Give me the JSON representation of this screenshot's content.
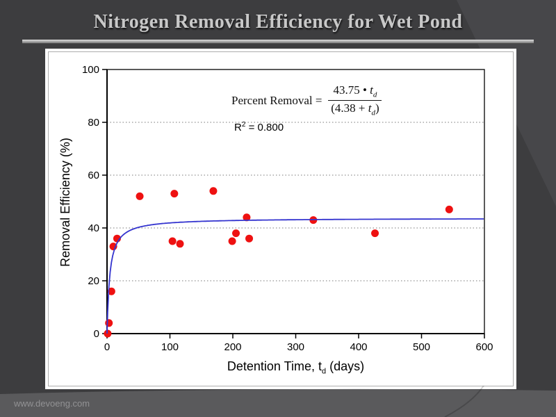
{
  "slide": {
    "title": "Nitrogen Removal Efficiency for Wet Pond",
    "footer": "www.devoeng.com",
    "colors": {
      "background": "#3d3d3f",
      "corner_accent": "#47474a",
      "bottom_band": "#5a5a5c",
      "title_text": "#c8c8c8"
    }
  },
  "chart_data": {
    "type": "scatter",
    "title": "Nitrogen Removal Efficiency for Wet Pond",
    "xlabel": {
      "prefix": "Detention Time, t",
      "sub": "d",
      "suffix": " (days)"
    },
    "ylabel": "Removal Efficiency (%)",
    "xlim": [
      0,
      600
    ],
    "ylim": [
      0,
      100
    ],
    "xticks": [
      "0",
      "100",
      "200",
      "300",
      "400",
      "500",
      "600"
    ],
    "yticks": [
      "0",
      "20",
      "40",
      "60",
      "80",
      "100"
    ],
    "grid_y": [
      20,
      40,
      60,
      80
    ],
    "grid_style": "horizontal dotted",
    "legend": "none",
    "points": [
      [
        1,
        0
      ],
      [
        3,
        4
      ],
      [
        7,
        16
      ],
      [
        10,
        33
      ],
      [
        16,
        36
      ],
      [
        52,
        52
      ],
      [
        104,
        35
      ],
      [
        107,
        53
      ],
      [
        116,
        34
      ],
      [
        169,
        54
      ],
      [
        199,
        35
      ],
      [
        205,
        38
      ],
      [
        222,
        44
      ],
      [
        226,
        36
      ],
      [
        328,
        43
      ],
      [
        426,
        38
      ],
      [
        544,
        47
      ]
    ],
    "fit_curve": {
      "equation": "PercentRemoval = 43.75*td / (4.38 + td)",
      "a": 43.75,
      "b": 4.38,
      "r_squared": 0.8
    },
    "annotation": {
      "lhs": "Percent Removal =",
      "num_left": "43.75 • ",
      "num_var": "t",
      "num_sub": "d",
      "den_left": "(4.38 + ",
      "den_var": "t",
      "den_sub": "d",
      "den_right": ")",
      "r2_base": "R",
      "r2_sup": "2",
      "r2_rest": " = 0.800"
    },
    "colors": {
      "point": "#ee1111",
      "curve": "#3434cf",
      "grid": "#777777",
      "axis": "#000000"
    }
  }
}
